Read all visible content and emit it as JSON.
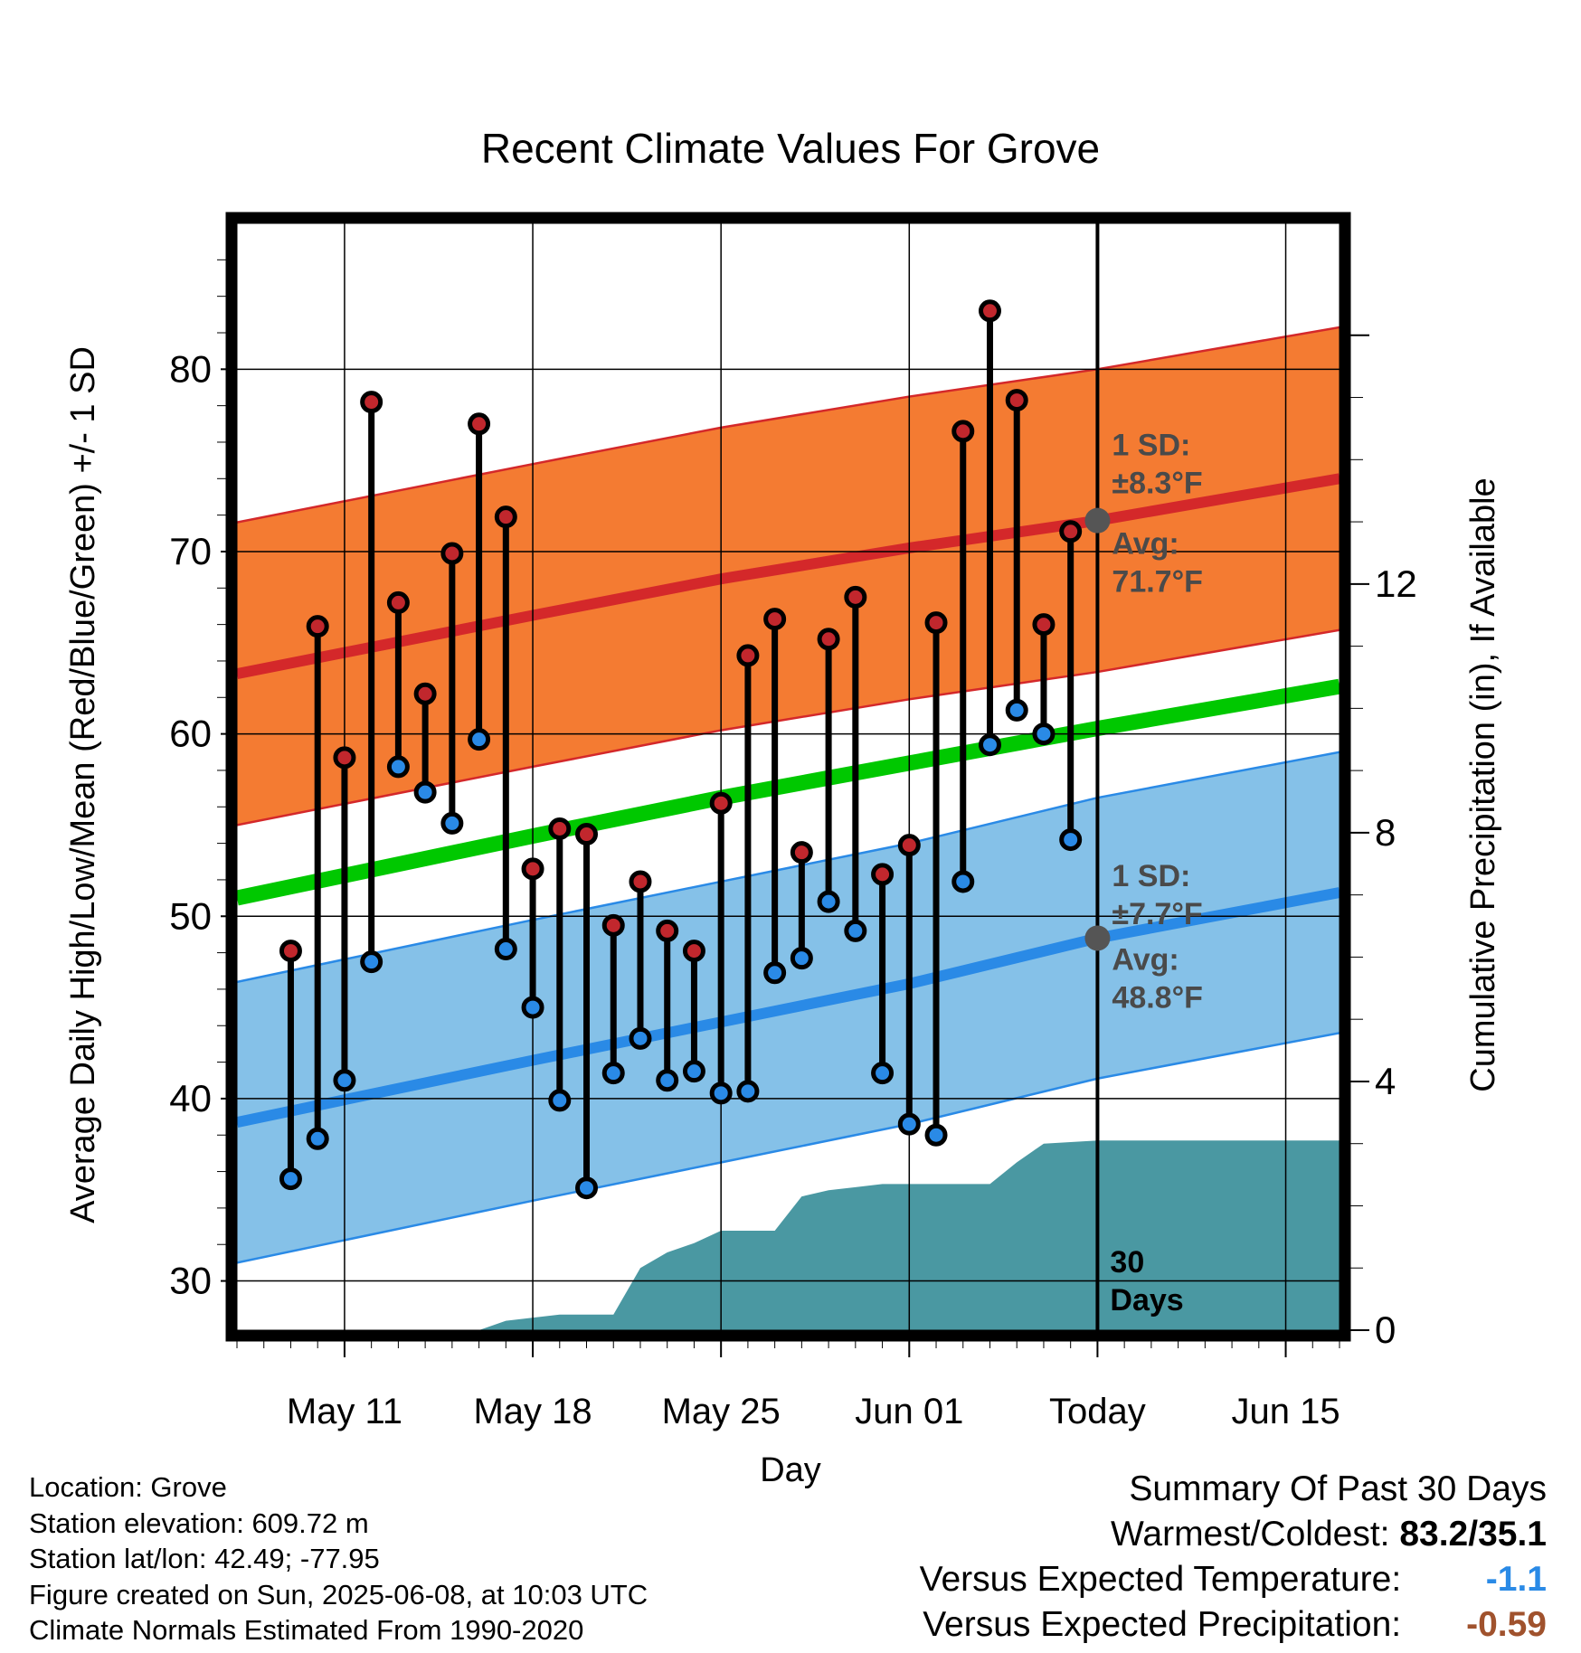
{
  "chart_data": {
    "type": "line",
    "title": "Recent Climate Values For Grove",
    "xlabel": "Day",
    "ylabel": "Average Daily High/Low/Mean (Red/Blue/Green) +/- 1 SD",
    "y2label": "Cumulative Precipitation (in), If Available",
    "ylim": [
      27.3,
      88
    ],
    "y2lim": [
      0,
      17.8
    ],
    "xlim": [
      "2025-05-07",
      "2025-06-17"
    ],
    "x_tick_labels": [
      {
        "date": "2025-05-11",
        "label": "May 11"
      },
      {
        "date": "2025-05-18",
        "label": "May 18"
      },
      {
        "date": "2025-05-25",
        "label": "May 25"
      },
      {
        "date": "2025-06-01",
        "label": "Jun 01"
      },
      {
        "date": "2025-06-08",
        "label": "Today"
      },
      {
        "date": "2025-06-15",
        "label": "Jun 15"
      }
    ],
    "y_ticks": [
      30,
      40,
      50,
      60,
      70,
      80
    ],
    "y2_ticks": [
      0,
      4,
      8,
      12
    ],
    "grid": true,
    "today": "2025-06-08",
    "normals": {
      "dates": [
        "2025-05-07",
        "2025-05-18",
        "2025-05-25",
        "2025-06-01",
        "2025-06-08",
        "2025-06-17"
      ],
      "high_avg": [
        63.3,
        66.5,
        68.5,
        70.2,
        71.7,
        74.0
      ],
      "high_sd": 8.3,
      "low_avg": [
        38.7,
        42.1,
        44.2,
        46.3,
        48.8,
        51.3
      ],
      "low_sd": 7.7,
      "mean_avg": [
        51.0,
        54.4,
        56.5,
        58.4,
        60.3,
        62.6
      ]
    },
    "series": [
      {
        "name": "High",
        "color": "#c1272d",
        "dates": [
          "2025-05-09",
          "2025-05-10",
          "2025-05-11",
          "2025-05-12",
          "2025-05-13",
          "2025-05-14",
          "2025-05-15",
          "2025-05-16",
          "2025-05-17",
          "2025-05-18",
          "2025-05-19",
          "2025-05-20",
          "2025-05-21",
          "2025-05-22",
          "2025-05-23",
          "2025-05-24",
          "2025-05-25",
          "2025-05-26",
          "2025-05-27",
          "2025-05-28",
          "2025-05-29",
          "2025-05-30",
          "2025-05-31",
          "2025-06-01",
          "2025-06-02",
          "2025-06-03",
          "2025-06-04",
          "2025-06-05",
          "2025-06-06",
          "2025-06-07"
        ],
        "values": [
          48.1,
          65.9,
          58.7,
          78.2,
          67.2,
          62.2,
          69.9,
          77.0,
          71.9,
          52.6,
          54.8,
          54.5,
          49.5,
          51.9,
          49.2,
          48.1,
          56.2,
          64.3,
          66.3,
          53.5,
          65.2,
          67.5,
          52.3,
          53.9,
          66.1,
          76.6,
          83.2,
          78.3,
          66.0,
          71.1
        ]
      },
      {
        "name": "Low",
        "color": "#2a8ae6",
        "dates": [
          "2025-05-09",
          "2025-05-10",
          "2025-05-11",
          "2025-05-12",
          "2025-05-13",
          "2025-05-14",
          "2025-05-15",
          "2025-05-16",
          "2025-05-17",
          "2025-05-18",
          "2025-05-19",
          "2025-05-20",
          "2025-05-21",
          "2025-05-22",
          "2025-05-23",
          "2025-05-24",
          "2025-05-25",
          "2025-05-26",
          "2025-05-27",
          "2025-05-28",
          "2025-05-29",
          "2025-05-30",
          "2025-05-31",
          "2025-06-01",
          "2025-06-02",
          "2025-06-03",
          "2025-06-04",
          "2025-06-05",
          "2025-06-06",
          "2025-06-07"
        ],
        "values": [
          35.6,
          37.8,
          41.0,
          47.5,
          58.2,
          56.8,
          55.1,
          59.7,
          48.2,
          45.0,
          39.9,
          35.1,
          41.4,
          43.3,
          41.0,
          41.5,
          40.3,
          40.4,
          46.9,
          47.7,
          50.8,
          49.2,
          41.4,
          38.6,
          38.0,
          51.9,
          59.4,
          61.3,
          60.0,
          54.2
        ]
      },
      {
        "name": "Cumulative Precipitation",
        "color": "#4a98a2",
        "dates": [
          "2025-05-13",
          "2025-05-16",
          "2025-05-17",
          "2025-05-19",
          "2025-05-20",
          "2025-05-21",
          "2025-05-22",
          "2025-05-23",
          "2025-05-24",
          "2025-05-25",
          "2025-05-26",
          "2025-05-27",
          "2025-05-28",
          "2025-05-29",
          "2025-05-30",
          "2025-05-31",
          "2025-06-01",
          "2025-06-02",
          "2025-06-03",
          "2025-06-04",
          "2025-06-05",
          "2025-06-06",
          "2025-06-08",
          "2025-06-17"
        ],
        "values": [
          0,
          0,
          0.15,
          0.25,
          0.25,
          0.25,
          1.0,
          1.25,
          1.4,
          1.6,
          1.6,
          1.6,
          2.15,
          2.25,
          2.3,
          2.35,
          2.35,
          2.35,
          2.35,
          2.35,
          2.7,
          3.0,
          3.05,
          3.05
        ]
      }
    ],
    "annotations": {
      "high_sd_line1": "1 SD:",
      "high_sd_line2": "±8.3°F",
      "high_avg_line1": "Avg:",
      "high_avg_line2": "71.7°F",
      "low_sd_line1": "1 SD:",
      "low_sd_line2": "±7.7°F",
      "low_avg_line1": "Avg:",
      "low_avg_line2": "48.8°F",
      "days_line1": "30",
      "days_line2": "Days"
    },
    "colors": {
      "high_band": "#f47b32",
      "high_band_edge": "#d4282a",
      "high_avg": "#d4282a",
      "low_band": "#85c1e8",
      "low_band_edge": "#2a8ae6",
      "low_avg": "#2a8ae6",
      "mean": "#00c800",
      "annotation_text": "#4a4a4a"
    }
  },
  "footer": {
    "location": "Location: Grove",
    "elevation": "Station elevation: 609.72 m",
    "latlon": "Station lat/lon: 42.49; -77.95",
    "created": "Figure created on Sun, 2025-06-08, at 10:03 UTC",
    "normals": "Climate Normals Estimated From 1990-2020"
  },
  "summary": {
    "title": "Summary Of Past 30 Days",
    "warmest_label": "Warmest/Coldest:",
    "warmest_value": "83.2/35.1",
    "temp_label": "Versus Expected Temperature:",
    "temp_value": "-1.1",
    "temp_color": "#2a8ae6",
    "precip_label": "Versus Expected Precipitation:",
    "precip_value": "-0.59",
    "precip_color": "#a0522d"
  }
}
